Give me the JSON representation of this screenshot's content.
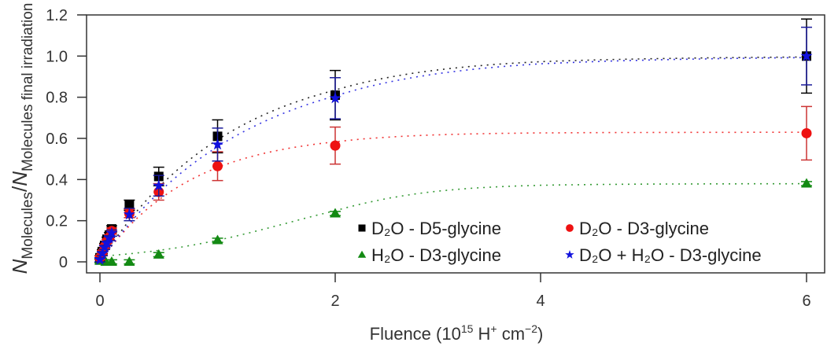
{
  "chart_data": {
    "type": "scatter",
    "xlabel": {
      "main": "Fluence (10",
      "sup1": "15",
      "mid": " H",
      "sup2": "+",
      "mid2": " cm",
      "sup3": "−2",
      "end": ")"
    },
    "ylabel": {
      "n1": "N",
      "sub1": "Molecules",
      "slash": "/",
      "n2": "N",
      "sub2": "Molecules final irradiation"
    },
    "xticks": [
      0,
      2,
      4,
      6
    ],
    "xtick_labels": [
      "0",
      "2",
      "4",
      "6"
    ],
    "yticks": [
      0,
      0.2,
      0.4,
      0.6,
      0.8,
      1.0,
      1.2
    ],
    "ytick_labels": [
      "0",
      "0.2",
      "0.4",
      "0.6",
      "0.8",
      "1.0",
      "1.2"
    ],
    "ylim": [
      0,
      1.2
    ],
    "xlim": [
      0,
      6
    ],
    "grid": false,
    "legend_position": "bottom-right",
    "series": [
      {
        "name": "D₂O - D5-glycine",
        "marker": "square",
        "color": "#000000",
        "errcolor": "#000000",
        "x": [
          0,
          0.02,
          0.04,
          0.06,
          0.08,
          0.1,
          0.25,
          0.5,
          1,
          2,
          6
        ],
        "y": [
          0.02,
          0.05,
          0.08,
          0.11,
          0.13,
          0.16,
          0.275,
          0.415,
          0.61,
          0.81,
          1.0
        ],
        "err": [
          0.01,
          0.01,
          0.01,
          0.01,
          0.012,
          0.015,
          0.025,
          0.045,
          0.08,
          0.12,
          0.18
        ],
        "fit_curve": {
          "form": "A*(1-exp(-k*x))",
          "A": 1.0,
          "k": 0.9
        }
      },
      {
        "name": "D₂O - D3-glycine",
        "marker": "circle",
        "color": "#ee1111",
        "errcolor": "#cc3333",
        "x": [
          0,
          0.02,
          0.04,
          0.06,
          0.08,
          0.1,
          0.25,
          0.5,
          1,
          2,
          6
        ],
        "y": [
          0.02,
          0.045,
          0.075,
          0.1,
          0.12,
          0.15,
          0.235,
          0.34,
          0.465,
          0.565,
          0.625
        ],
        "err": [
          0.01,
          0.01,
          0.01,
          0.01,
          0.012,
          0.015,
          0.02,
          0.04,
          0.07,
          0.09,
          0.13
        ],
        "fit_curve": {
          "form": "A*(1-exp(-k*x))",
          "A": 0.63,
          "k": 1.3
        }
      },
      {
        "name": "H₂O - D3-glycine",
        "marker": "triangle",
        "color": "#138a13",
        "errcolor": "#138a13",
        "x": [
          0,
          0.05,
          0.1,
          0.25,
          0.5,
          1,
          2,
          6
        ],
        "y": [
          0.005,
          0.0,
          0.0,
          0.0,
          0.035,
          0.105,
          0.235,
          0.38
        ],
        "err": [
          0.01,
          0.01,
          0.01,
          0.01,
          0.01,
          0.01,
          0.01,
          0.01
        ],
        "fit_curve": {
          "form": "A/(1+exp(-k*(x-x0)))",
          "A": 0.38,
          "k": 1.6,
          "x0": 1.6
        }
      },
      {
        "name": "D₂O + H₂O - D3-glycine",
        "marker": "star",
        "color": "#1111dd",
        "errcolor": "#1a1a9a",
        "x": [
          0,
          0.02,
          0.04,
          0.06,
          0.08,
          0.1,
          0.25,
          0.5,
          1,
          2,
          6
        ],
        "y": [
          0.01,
          0.04,
          0.07,
          0.09,
          0.115,
          0.14,
          0.23,
          0.37,
          0.57,
          0.795,
          1.0
        ],
        "err": [
          0.01,
          0.01,
          0.01,
          0.01,
          0.012,
          0.015,
          0.03,
          0.05,
          0.08,
          0.1,
          0.14
        ],
        "fit_curve": {
          "form": "A*(1-exp(-k*x))",
          "A": 1.0,
          "k": 0.82
        }
      }
    ]
  }
}
